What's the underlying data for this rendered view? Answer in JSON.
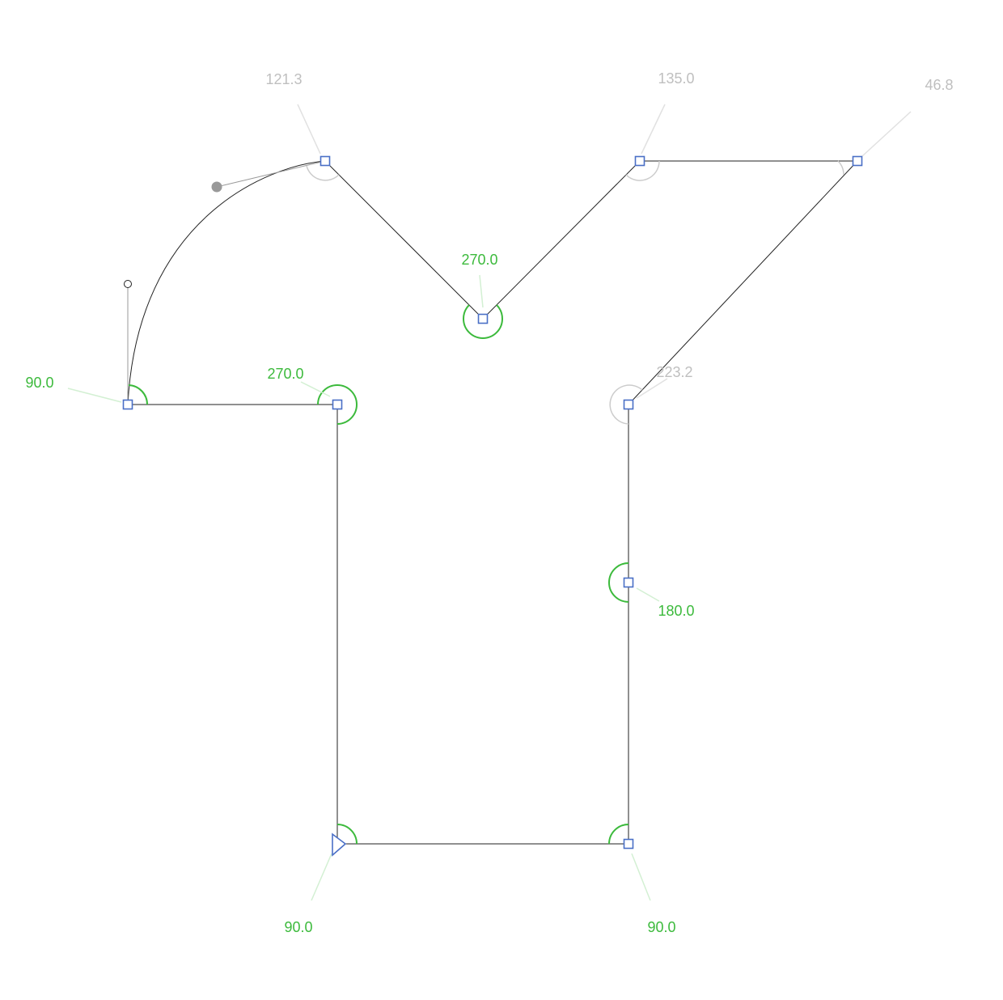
{
  "colors": {
    "path": "#222222",
    "node": "#4a6fc6",
    "angle_right": "#3cba3c",
    "angle_other": "#bfbfbf",
    "handle": "#999999"
  },
  "angles": [
    {
      "id": "start",
      "value": "90.0",
      "kind": "right"
    },
    {
      "id": "bottom-right",
      "value": "90.0",
      "kind": "right"
    },
    {
      "id": "mid-right",
      "value": "180.0",
      "kind": "right"
    },
    {
      "id": "inner-right",
      "value": "223.2",
      "kind": "other"
    },
    {
      "id": "top-right",
      "value": "46.8",
      "kind": "other"
    },
    {
      "id": "top-mid-right",
      "value": "135.0",
      "kind": "other"
    },
    {
      "id": "valley",
      "value": "270.0",
      "kind": "right"
    },
    {
      "id": "top-left",
      "value": "121.3",
      "kind": "other"
    },
    {
      "id": "left",
      "value": "90.0",
      "kind": "right"
    },
    {
      "id": "inner-left",
      "value": "270.0",
      "kind": "right"
    }
  ]
}
